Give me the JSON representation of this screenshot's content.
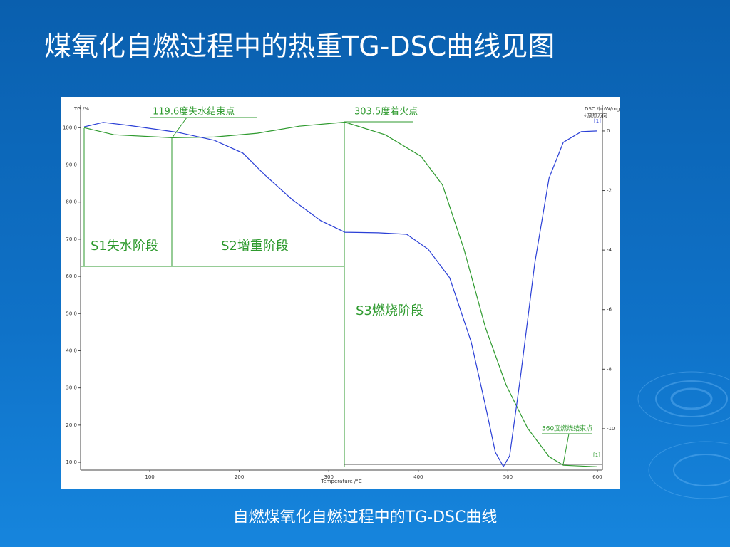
{
  "title": "煤氧化自燃过程中的热重TG-DSC曲线见图",
  "caption": "自燃煤氧化自燃过程中的TG-DSC曲线",
  "chart_data": {
    "type": "line",
    "x_label": "Temperature /°C",
    "y_label": "TG /%",
    "y2_label": "DSC /(mW/mg)",
    "y2_note": "↓放热方向",
    "series_tags": [
      "[1]",
      "[1]"
    ],
    "annotations": [
      "119.6度失水结束点",
      "303.5度着火点",
      "S1失水阶段",
      "S2增重阶段",
      "S3燃烧阶段",
      "560度燃烧结束点"
    ],
    "xlim": [
      22.7,
      605.6
    ],
    "xticks": [
      100,
      200,
      300,
      400,
      500,
      600
    ],
    "ylim": [
      7.9,
      106
    ],
    "yticks": [
      {
        "value": 100,
        "label": "100.0"
      },
      {
        "value": 90,
        "label": "90.0"
      },
      {
        "value": 80,
        "label": "80.0"
      },
      {
        "value": 70,
        "label": "70.0"
      },
      {
        "value": 60,
        "label": "60.0"
      },
      {
        "value": 50,
        "label": "50.0"
      },
      {
        "value": 40,
        "label": "40.0"
      },
      {
        "value": 30,
        "label": "30.0"
      },
      {
        "value": 20,
        "label": "20.0"
      },
      {
        "value": 10,
        "label": "10.0"
      }
    ],
    "y2lim": [
      -11.39,
      0.86
    ],
    "y2ticks": [
      0,
      -2,
      -4,
      -6,
      -8,
      -10
    ],
    "series": [
      {
        "color": "#2e9a2e",
        "x": [
          26.7,
          60,
          125,
          172,
          220,
          267,
          318,
          363,
          403,
          427,
          451,
          475,
          498,
          522,
          546,
          562,
          600
        ],
        "values": [
          100.0,
          98.1,
          97.3,
          97.5,
          98.5,
          100.4,
          101.5,
          98.1,
          92.3,
          84.6,
          67.3,
          46.2,
          30.8,
          19.2,
          11.5,
          9.2,
          8.8
        ]
      },
      {
        "color": "#2a3fd6",
        "axis": "y2",
        "x": [
          26.7,
          48,
          76,
          132,
          172,
          204,
          228,
          259,
          291,
          318,
          355,
          387,
          411,
          435,
          459,
          475,
          486,
          495,
          502,
          514,
          530,
          546,
          562,
          582,
          600
        ],
        "values": [
          0.14,
          0.29,
          0.19,
          -0.05,
          -0.31,
          -0.74,
          -1.46,
          -2.3,
          -3.01,
          -3.4,
          -3.42,
          -3.47,
          -3.97,
          -4.93,
          -7.08,
          -9.23,
          -10.79,
          -11.27,
          -10.91,
          -8.28,
          -4.45,
          -1.58,
          -0.38,
          -0.02,
          0.0
        ]
      }
    ]
  }
}
